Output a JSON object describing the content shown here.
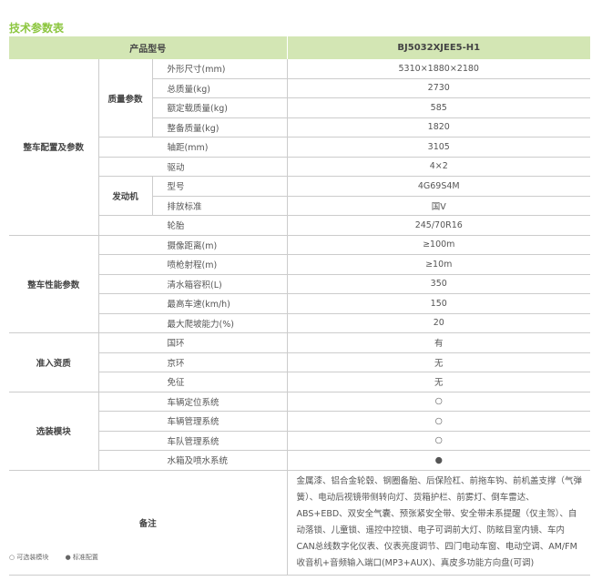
{
  "title": "技术参数表",
  "header": {
    "label": "产品型号",
    "model": "BJ5032XJEE5-H1"
  },
  "sections": [
    {
      "name": "整车配置及参数"
    },
    {
      "name": "整车性能参数"
    },
    {
      "name": "准入资质"
    },
    {
      "name": "选装模块"
    }
  ],
  "rows": {
    "dims": {
      "label": "外形尺寸(mm)",
      "value": "5310×1880×2180"
    },
    "gross": {
      "label": "总质量(kg)",
      "value": "2730"
    },
    "load": {
      "label": "额定载质量(kg)",
      "value": "585"
    },
    "curb": {
      "label": "整备质量(kg)",
      "value": "1820"
    },
    "wheelbase": {
      "label": "轴距(mm)",
      "value": "3105"
    },
    "drive": {
      "label": "驱动",
      "value": "4×2"
    },
    "engine_model": {
      "label": "型号",
      "value": "4G69S4M"
    },
    "emission": {
      "label": "排放标准",
      "value": "国V"
    },
    "tire": {
      "label": "轮胎",
      "value": "245/70R16"
    },
    "camera": {
      "label": "摄像距离(m)",
      "value": "≥100m"
    },
    "spray": {
      "label": "喷枪射程(m)",
      "value": "≥10m"
    },
    "tank": {
      "label": "清水箱容积(L)",
      "value": "350"
    },
    "speed": {
      "label": "最高车速(km/h)",
      "value": "150"
    },
    "grade": {
      "label": "最大爬坡能力(%)",
      "value": "20"
    },
    "guohuan": {
      "label": "国环",
      "value": "有"
    },
    "jinghuan": {
      "label": "京环",
      "value": "无"
    },
    "mianzheng": {
      "label": "免征",
      "value": "无"
    },
    "opt1": {
      "label": "车辆定位系统",
      "value": "○"
    },
    "opt2": {
      "label": "车辆管理系统",
      "value": "○"
    },
    "opt3": {
      "label": "车队管理系统",
      "value": "○"
    },
    "opt4": {
      "label": "水箱及喷水系统",
      "value": "●"
    }
  },
  "groups": {
    "mass": "质量参数",
    "engine": "发动机"
  },
  "notes": {
    "label": "备注",
    "text": "金属漆、铝合金轮毂、钢圈备胎、后保险杠、前拖车钩、前机盖支撑（气弹簧）、电动后视镜带侧转向灯、货箱护栏、前雾灯、倒车雷达、ABS+EBD、双安全气囊、预张紧安全带、安全带未系提醒（仅主驾）、自动落锁、儿童锁、遥控中控锁、电子可调前大灯、防眩目室内镜、车内CAN总线数字化仪表、仪表亮度调节、四门电动车窗、电动空调、AM/FM收音机+音频输入端口(MP3+AUX)、真皮多功能方向盘(可调)"
  },
  "legend": {
    "optional": "○ 可选装模块",
    "standard": "● 标准配置"
  },
  "colors": {
    "title": "#8cc63f",
    "header_bg": "#d3e6b4"
  }
}
